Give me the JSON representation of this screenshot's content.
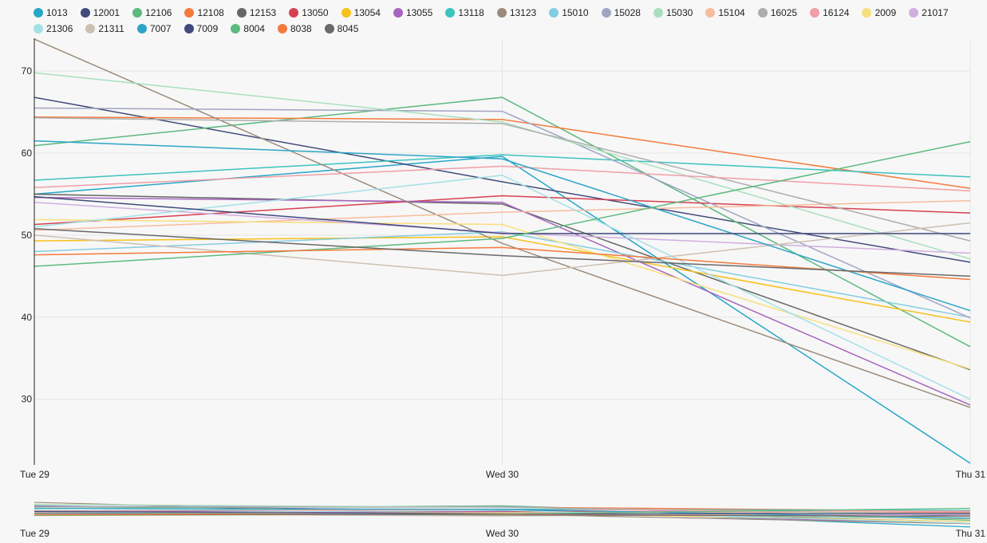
{
  "chart_data": {
    "type": "line",
    "categories": [
      "Tue 29",
      "Wed 30",
      "Thu 31"
    ],
    "ylim": [
      22,
      74
    ],
    "yticks": [
      30,
      40,
      50,
      60,
      70
    ],
    "grid": true,
    "legend_position": "top-left",
    "series": [
      {
        "name": "1013",
        "color": "#26a7c9",
        "values": [
          55.0,
          59.6,
          22.2
        ]
      },
      {
        "name": "12001",
        "color": "#414b7a",
        "values": [
          66.8,
          56.5,
          46.7
        ]
      },
      {
        "name": "12106",
        "color": "#5bb97e",
        "values": [
          60.9,
          66.8,
          36.4
        ]
      },
      {
        "name": "12108",
        "color": "#f47a3d",
        "values": [
          64.4,
          64.1,
          55.7
        ]
      },
      {
        "name": "12153",
        "color": "#666666",
        "values": [
          55.0,
          53.8,
          33.6
        ]
      },
      {
        "name": "13050",
        "color": "#d64151",
        "values": [
          51.3,
          54.8,
          52.7
        ]
      },
      {
        "name": "13054",
        "color": "#f6c11c",
        "values": [
          49.3,
          49.8,
          39.4
        ]
      },
      {
        "name": "13055",
        "color": "#a765bf",
        "values": [
          54.6,
          54.0,
          29.3
        ]
      },
      {
        "name": "13118",
        "color": "#3dc2c0",
        "values": [
          56.7,
          59.8,
          57.1
        ]
      },
      {
        "name": "13123",
        "color": "#9c8b7a",
        "values": [
          73.9,
          49.0,
          29.0
        ]
      },
      {
        "name": "15010",
        "color": "#84cde0",
        "values": [
          48.0,
          50.4,
          40.0
        ]
      },
      {
        "name": "15028",
        "color": "#a1a5c4",
        "values": [
          65.5,
          65.1,
          39.9
        ]
      },
      {
        "name": "15030",
        "color": "#a9dfbe",
        "values": [
          69.8,
          63.8,
          47.1
        ]
      },
      {
        "name": "15104",
        "color": "#f7bc9b",
        "values": [
          50.6,
          52.8,
          54.2
        ]
      },
      {
        "name": "16025",
        "color": "#aeaeae",
        "values": [
          64.3,
          63.6,
          49.3
        ]
      },
      {
        "name": "16124",
        "color": "#f09ea7",
        "values": [
          55.8,
          58.4,
          55.4
        ]
      },
      {
        "name": "2009",
        "color": "#f8df7d",
        "values": [
          51.9,
          51.3,
          33.7
        ]
      },
      {
        "name": "21017",
        "color": "#d1aee0",
        "values": [
          54.0,
          50.3,
          47.8
        ]
      },
      {
        "name": "21306",
        "color": "#a4e1e6",
        "values": [
          51.0,
          57.3,
          30.0
        ]
      },
      {
        "name": "21311",
        "color": "#ccc0b4",
        "values": [
          50.0,
          45.1,
          51.5
        ]
      },
      {
        "name": "7007",
        "color": "#2da5c6",
        "values": [
          61.5,
          59.3,
          40.8
        ]
      },
      {
        "name": "7009",
        "color": "#404a7c",
        "values": [
          54.7,
          50.2,
          50.2
        ]
      },
      {
        "name": "8004",
        "color": "#5dba7f",
        "values": [
          46.2,
          49.6,
          61.4
        ]
      },
      {
        "name": "8038",
        "color": "#f47a3d",
        "values": [
          47.6,
          48.5,
          44.6
        ]
      },
      {
        "name": "8045",
        "color": "#6a6a6a",
        "values": [
          50.8,
          47.5,
          45.0
        ]
      }
    ]
  }
}
